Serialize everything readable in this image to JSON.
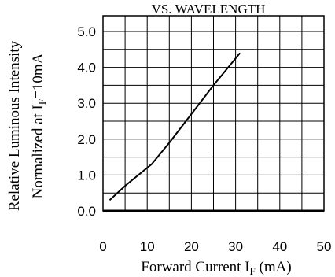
{
  "chart_data": {
    "type": "line",
    "title": "VS. WAVELENGTH",
    "xlabel": {
      "main": "Forward Current I",
      "sub": "F",
      "tail": " (mA)"
    },
    "ylabel": {
      "line1": "Relative Luminous Intensity",
      "line2_main": "Normalized at I",
      "line2_sub": "F",
      "line2_tail": "=10mA"
    },
    "xlim": [
      0,
      50
    ],
    "ylim": [
      0.0,
      5.0
    ],
    "x_ticks": [
      "0",
      "10",
      "20",
      "30",
      "40",
      "50"
    ],
    "y_ticks": [
      "0.0",
      "1.0",
      "2.0",
      "3.0",
      "4.0",
      "5.0"
    ],
    "grid": true,
    "series": [
      {
        "x": [
          1.5,
          5,
          8,
          11,
          15,
          20,
          25,
          31
        ],
        "y": [
          0.3,
          0.7,
          1.0,
          1.3,
          1.9,
          2.7,
          3.5,
          4.4
        ]
      }
    ]
  }
}
